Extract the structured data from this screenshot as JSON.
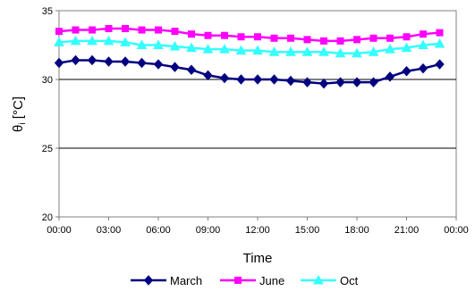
{
  "chart_data": {
    "type": "line",
    "title": "",
    "xlabel": "Time",
    "ylabel": "θ",
    "ylabel_sub": "i",
    "ylabel_unit": " [°C]",
    "x_ticks": [
      "00:00",
      "03:00",
      "06:00",
      "09:00",
      "12:00",
      "15:00",
      "18:00",
      "21:00",
      "00:00"
    ],
    "x_hours": [
      0,
      1,
      2,
      3,
      4,
      5,
      6,
      7,
      8,
      9,
      10,
      11,
      12,
      13,
      14,
      15,
      16,
      17,
      18,
      19,
      20,
      21,
      22,
      23
    ],
    "xlim_hours": [
      0,
      24
    ],
    "ylim": [
      20,
      35
    ],
    "y_ticks": [
      20,
      25,
      30,
      35
    ],
    "gridlines_y": [
      25,
      30
    ],
    "legend_position": "bottom",
    "series": [
      {
        "name": "March",
        "color": "#000080",
        "marker": "diamond",
        "values": [
          31.2,
          31.4,
          31.4,
          31.3,
          31.3,
          31.2,
          31.1,
          30.9,
          30.7,
          30.3,
          30.1,
          30.0,
          30.0,
          30.0,
          29.9,
          29.8,
          29.7,
          29.8,
          29.8,
          29.8,
          30.2,
          30.6,
          30.8,
          31.1
        ]
      },
      {
        "name": "June",
        "color": "#ff00ff",
        "marker": "square",
        "values": [
          33.5,
          33.6,
          33.6,
          33.7,
          33.7,
          33.6,
          33.6,
          33.5,
          33.3,
          33.2,
          33.2,
          33.1,
          33.1,
          33.0,
          33.0,
          32.9,
          32.8,
          32.8,
          32.9,
          33.0,
          33.0,
          33.1,
          33.3,
          33.4
        ]
      },
      {
        "name": "Oct",
        "color": "#33ffff",
        "marker": "triangle",
        "values": [
          32.7,
          32.8,
          32.8,
          32.8,
          32.7,
          32.5,
          32.5,
          32.4,
          32.3,
          32.2,
          32.2,
          32.1,
          32.1,
          32.0,
          32.0,
          32.0,
          32.0,
          31.9,
          31.9,
          32.0,
          32.2,
          32.3,
          32.5,
          32.6
        ]
      }
    ]
  }
}
